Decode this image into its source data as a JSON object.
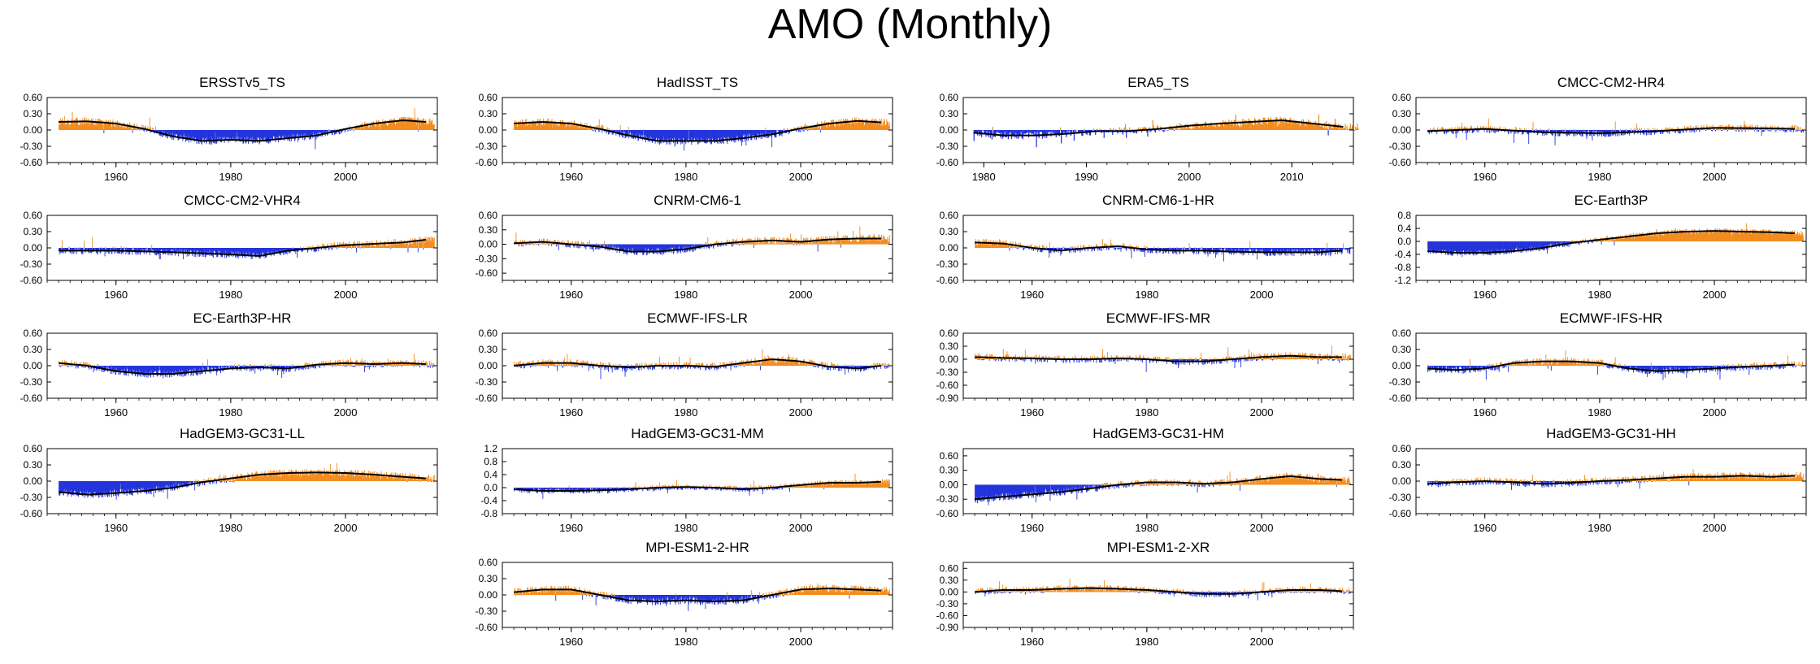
{
  "title": "AMO (Monthly)",
  "colors": {
    "positive": "#f28c1e",
    "negative": "#2233dd",
    "smooth": "#000000"
  },
  "chart_data": [
    {
      "type": "area",
      "title": "ERSSTv5_TS",
      "xlim": [
        1948,
        2016
      ],
      "ylim": [
        -0.6,
        0.6
      ],
      "yticks": [
        "0.60",
        "0.30",
        "0.00",
        "-0.30",
        "-0.60"
      ],
      "xticks": [
        "1960",
        "1980",
        "2000"
      ],
      "x": [
        1950,
        1955,
        1960,
        1965,
        1970,
        1975,
        1980,
        1985,
        1990,
        1995,
        2000,
        2005,
        2010,
        2014
      ],
      "smooth": [
        0.15,
        0.16,
        0.12,
        0.02,
        -0.12,
        -0.2,
        -0.18,
        -0.2,
        -0.15,
        -0.1,
        0.02,
        0.12,
        0.18,
        0.15
      ]
    },
    {
      "type": "area",
      "title": "HadISST_TS",
      "xlim": [
        1948,
        2016
      ],
      "ylim": [
        -0.6,
        0.6
      ],
      "yticks": [
        "0.60",
        "0.30",
        "0.00",
        "-0.30",
        "-0.60"
      ],
      "xticks": [
        "1960",
        "1980",
        "2000"
      ],
      "x": [
        1950,
        1955,
        1960,
        1965,
        1970,
        1975,
        1980,
        1985,
        1990,
        1995,
        2000,
        2005,
        2010,
        2014
      ],
      "smooth": [
        0.12,
        0.15,
        0.12,
        0.02,
        -0.1,
        -0.2,
        -0.2,
        -0.2,
        -0.15,
        -0.08,
        0.03,
        0.12,
        0.17,
        0.14
      ]
    },
    {
      "type": "area",
      "title": "ERA5_TS",
      "xlim": [
        1978,
        2016
      ],
      "ylim": [
        -0.6,
        0.6
      ],
      "yticks": [
        "0.60",
        "0.30",
        "0.00",
        "-0.30",
        "-0.60"
      ],
      "xticks": [
        "1980",
        "1990",
        "2000",
        "2010"
      ],
      "x": [
        1979,
        1982,
        1985,
        1988,
        1991,
        1994,
        1997,
        2000,
        2003,
        2006,
        2009,
        2012,
        2015
      ],
      "smooth": [
        -0.05,
        -0.1,
        -0.1,
        -0.07,
        -0.02,
        -0.02,
        0.02,
        0.08,
        0.12,
        0.15,
        0.18,
        0.12,
        0.06
      ]
    },
    {
      "type": "area",
      "title": "CMCC-CM2-HR4",
      "xlim": [
        1948,
        2016
      ],
      "ylim": [
        -0.6,
        0.6
      ],
      "yticks": [
        "0.60",
        "0.30",
        "0.00",
        "-0.30",
        "-0.60"
      ],
      "xticks": [
        "1960",
        "1980",
        "2000"
      ],
      "x": [
        1950,
        1960,
        1970,
        1980,
        1990,
        2000,
        2010,
        2014
      ],
      "smooth": [
        -0.02,
        0.02,
        -0.04,
        -0.06,
        -0.02,
        0.04,
        0.03,
        0.02
      ]
    },
    {
      "type": "area",
      "title": "CMCC-CM2-VHR4",
      "xlim": [
        1948,
        2016
      ],
      "ylim": [
        -0.6,
        0.6
      ],
      "yticks": [
        "0.60",
        "0.30",
        "0.00",
        "-0.30",
        "-0.60"
      ],
      "xticks": [
        "1960",
        "1980",
        "2000"
      ],
      "x": [
        1950,
        1960,
        1970,
        1980,
        1985,
        1990,
        2000,
        2010,
        2014
      ],
      "smooth": [
        -0.05,
        -0.05,
        -0.08,
        -0.12,
        -0.15,
        -0.05,
        0.05,
        0.1,
        0.15
      ]
    },
    {
      "type": "area",
      "title": "CNRM-CM6-1",
      "xlim": [
        1948,
        2016
      ],
      "ylim": [
        -0.75,
        0.6
      ],
      "yticks": [
        "0.60",
        "0.30",
        "0.00",
        "-0.30",
        "-0.60"
      ],
      "xticks": [
        "1960",
        "1980",
        "2000"
      ],
      "x": [
        1950,
        1955,
        1960,
        1965,
        1970,
        1975,
        1980,
        1985,
        1990,
        1995,
        2000,
        2005,
        2010,
        2014
      ],
      "smooth": [
        0.02,
        0.05,
        0.0,
        -0.05,
        -0.15,
        -0.15,
        -0.1,
        0.0,
        0.05,
        0.08,
        0.05,
        0.1,
        0.12,
        0.12
      ]
    },
    {
      "type": "area",
      "title": "CNRM-CM6-1-HR",
      "xlim": [
        1948,
        2016
      ],
      "ylim": [
        -0.6,
        0.6
      ],
      "yticks": [
        "0.60",
        "0.30",
        "0.00",
        "-0.30",
        "-0.60"
      ],
      "xticks": [
        "1960",
        "1980",
        "2000"
      ],
      "x": [
        1950,
        1955,
        1960,
        1965,
        1970,
        1975,
        1980,
        1985,
        1990,
        1995,
        2000,
        2005,
        2010,
        2014
      ],
      "smooth": [
        0.1,
        0.08,
        0.0,
        -0.05,
        0.0,
        0.03,
        -0.03,
        -0.05,
        -0.05,
        -0.07,
        -0.08,
        -0.08,
        -0.08,
        -0.05
      ]
    },
    {
      "type": "area",
      "title": "EC-Earth3P",
      "xlim": [
        1948,
        2016
      ],
      "ylim": [
        -1.2,
        0.8
      ],
      "yticks": [
        "0.8",
        "0.4",
        "0.0",
        "-0.4",
        "-0.8",
        "-1.2"
      ],
      "xticks": [
        "1960",
        "1980",
        "2000"
      ],
      "x": [
        1950,
        1955,
        1960,
        1965,
        1970,
        1975,
        1980,
        1985,
        1990,
        1995,
        2000,
        2005,
        2010,
        2014
      ],
      "smooth": [
        -0.3,
        -0.35,
        -0.35,
        -0.3,
        -0.2,
        -0.05,
        0.05,
        0.15,
        0.25,
        0.3,
        0.32,
        0.3,
        0.28,
        0.25
      ]
    },
    {
      "type": "area",
      "title": "EC-Earth3P-HR",
      "xlim": [
        1948,
        2016
      ],
      "ylim": [
        -0.6,
        0.6
      ],
      "yticks": [
        "0.60",
        "0.30",
        "0.00",
        "-0.30",
        "-0.60"
      ],
      "xticks": [
        "1960",
        "1980",
        "2000"
      ],
      "x": [
        1950,
        1955,
        1960,
        1965,
        1970,
        1975,
        1980,
        1985,
        1990,
        1995,
        2000,
        2005,
        2010,
        2014
      ],
      "smooth": [
        0.05,
        0.0,
        -0.1,
        -0.15,
        -0.15,
        -0.1,
        -0.05,
        -0.03,
        -0.05,
        0.02,
        0.05,
        0.03,
        0.05,
        0.03
      ]
    },
    {
      "type": "area",
      "title": "ECMWF-IFS-LR",
      "xlim": [
        1948,
        2016
      ],
      "ylim": [
        -0.6,
        0.6
      ],
      "yticks": [
        "0.60",
        "0.30",
        "0.00",
        "-0.30",
        "-0.60"
      ],
      "xticks": [
        "1960",
        "1980",
        "2000"
      ],
      "x": [
        1950,
        1955,
        1960,
        1965,
        1970,
        1975,
        1980,
        1985,
        1990,
        1995,
        2000,
        2005,
        2010,
        2014
      ],
      "smooth": [
        0.0,
        0.05,
        0.05,
        0.0,
        -0.03,
        0.0,
        0.0,
        -0.02,
        0.05,
        0.12,
        0.08,
        -0.02,
        -0.05,
        0.0
      ]
    },
    {
      "type": "area",
      "title": "ECMWF-IFS-MR",
      "xlim": [
        1948,
        2016
      ],
      "ylim": [
        -0.9,
        0.6
      ],
      "yticks": [
        "0.60",
        "0.30",
        "0.00",
        "-0.30",
        "-0.60",
        "-0.90"
      ],
      "xticks": [
        "1960",
        "1980",
        "2000"
      ],
      "x": [
        1950,
        1955,
        1960,
        1965,
        1970,
        1975,
        1980,
        1985,
        1990,
        1995,
        2000,
        2005,
        2010,
        2014
      ],
      "smooth": [
        0.05,
        0.03,
        0.02,
        0.0,
        0.0,
        0.02,
        0.0,
        -0.05,
        -0.05,
        0.0,
        0.05,
        0.08,
        0.05,
        0.05
      ]
    },
    {
      "type": "area",
      "title": "ECMWF-IFS-HR",
      "xlim": [
        1948,
        2016
      ],
      "ylim": [
        -0.6,
        0.6
      ],
      "yticks": [
        "0.60",
        "0.30",
        "0.00",
        "-0.30",
        "-0.60"
      ],
      "xticks": [
        "1960",
        "1980",
        "2000"
      ],
      "x": [
        1950,
        1955,
        1960,
        1965,
        1970,
        1975,
        1980,
        1985,
        1990,
        1995,
        2000,
        2005,
        2010,
        2014
      ],
      "smooth": [
        -0.05,
        -0.08,
        -0.05,
        0.05,
        0.08,
        0.08,
        0.05,
        -0.05,
        -0.1,
        -0.08,
        -0.05,
        -0.02,
        0.0,
        0.02
      ]
    },
    {
      "type": "area",
      "title": "HadGEM3-GC31-LL",
      "xlim": [
        1948,
        2016
      ],
      "ylim": [
        -0.6,
        0.6
      ],
      "yticks": [
        "0.60",
        "0.30",
        "0.00",
        "-0.30",
        "-0.60"
      ],
      "xticks": [
        "1960",
        "1980",
        "2000"
      ],
      "x": [
        1950,
        1955,
        1960,
        1965,
        1970,
        1975,
        1980,
        1985,
        1990,
        1995,
        2000,
        2005,
        2010,
        2014
      ],
      "smooth": [
        -0.2,
        -0.25,
        -0.22,
        -0.18,
        -0.12,
        -0.02,
        0.05,
        0.12,
        0.15,
        0.16,
        0.15,
        0.12,
        0.08,
        0.05
      ]
    },
    {
      "type": "area",
      "title": "HadGEM3-GC31-MM",
      "xlim": [
        1948,
        2016
      ],
      "ylim": [
        -0.8,
        1.2
      ],
      "yticks": [
        "1.2",
        "0.8",
        "0.4",
        "0.0",
        "-0.4",
        "-0.8"
      ],
      "xticks": [
        "1960",
        "1980",
        "2000"
      ],
      "x": [
        1950,
        1955,
        1960,
        1965,
        1970,
        1975,
        1980,
        1985,
        1990,
        1995,
        2000,
        2005,
        2010,
        2014
      ],
      "smooth": [
        -0.05,
        -0.1,
        -0.1,
        -0.08,
        -0.05,
        0.0,
        0.02,
        0.0,
        -0.05,
        0.0,
        0.08,
        0.15,
        0.15,
        0.18
      ]
    },
    {
      "type": "area",
      "title": "HadGEM3-GC31-HM",
      "xlim": [
        1948,
        2016
      ],
      "ylim": [
        -0.6,
        0.75
      ],
      "yticks": [
        "0.60",
        "0.30",
        "0.00",
        "-0.30",
        "-0.60"
      ],
      "xticks": [
        "1960",
        "1980",
        "2000"
      ],
      "x": [
        1950,
        1955,
        1960,
        1965,
        1970,
        1975,
        1980,
        1985,
        1990,
        1995,
        2000,
        2005,
        2010,
        2014
      ],
      "smooth": [
        -0.3,
        -0.25,
        -0.2,
        -0.15,
        -0.08,
        0.0,
        0.05,
        0.05,
        0.02,
        0.05,
        0.12,
        0.18,
        0.12,
        0.1
      ]
    },
    {
      "type": "area",
      "title": "HadGEM3-GC31-HH",
      "xlim": [
        1948,
        2016
      ],
      "ylim": [
        -0.6,
        0.6
      ],
      "yticks": [
        "0.60",
        "0.30",
        "0.00",
        "-0.30",
        "-0.60"
      ],
      "xticks": [
        "1960",
        "1980",
        "2000"
      ],
      "x": [
        1950,
        1955,
        1960,
        1965,
        1970,
        1975,
        1980,
        1985,
        1990,
        1995,
        2000,
        2005,
        2010,
        2014
      ],
      "smooth": [
        -0.05,
        -0.02,
        0.0,
        -0.02,
        -0.05,
        -0.03,
        0.0,
        0.02,
        0.05,
        0.08,
        0.08,
        0.1,
        0.08,
        0.1
      ]
    },
    {
      "type": "area",
      "title": "MPI-ESM1-2-HR",
      "xlim": [
        1948,
        2016
      ],
      "ylim": [
        -0.6,
        0.6
      ],
      "yticks": [
        "0.60",
        "0.30",
        "0.00",
        "-0.30",
        "-0.60"
      ],
      "xticks": [
        "1960",
        "1980",
        "2000"
      ],
      "x": [
        1950,
        1955,
        1960,
        1965,
        1970,
        1975,
        1980,
        1985,
        1990,
        1995,
        2000,
        2005,
        2010,
        2014
      ],
      "smooth": [
        0.05,
        0.1,
        0.1,
        0.0,
        -0.1,
        -0.12,
        -0.1,
        -0.12,
        -0.1,
        0.0,
        0.1,
        0.12,
        0.1,
        0.08
      ]
    },
    {
      "type": "area",
      "title": "MPI-ESM1-2-XR",
      "xlim": [
        1948,
        2016
      ],
      "ylim": [
        -0.9,
        0.75
      ],
      "yticks": [
        "0.60",
        "0.30",
        "0.00",
        "-0.30",
        "-0.60",
        "-0.90"
      ],
      "xticks": [
        "1960",
        "1980",
        "2000"
      ],
      "x": [
        1950,
        1955,
        1960,
        1965,
        1970,
        1975,
        1980,
        1985,
        1990,
        1995,
        2000,
        2005,
        2010,
        2014
      ],
      "smooth": [
        0.0,
        0.05,
        0.05,
        0.08,
        0.1,
        0.08,
        0.05,
        0.0,
        -0.05,
        -0.05,
        0.0,
        0.05,
        0.05,
        0.02
      ]
    }
  ]
}
